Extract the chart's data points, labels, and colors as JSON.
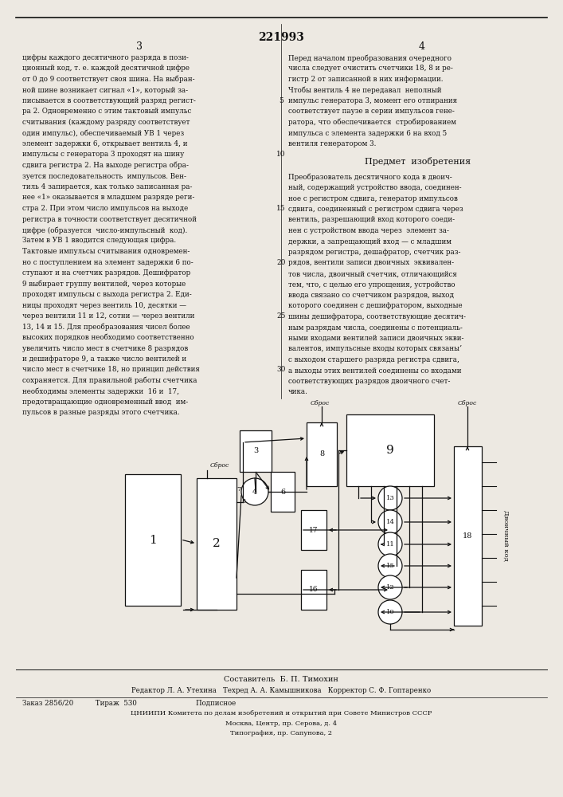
{
  "patent_number": "221993",
  "bg_color": "#f2f0eb",
  "left_col_text": [
    "цифры каждого десятичного разряда в пози-",
    "ционный код, т. е. каждой десятичной цифре",
    "от 0 до 9 соответствует своя шина. На выбран-",
    "ной шине возникает сигнал «1», который за-",
    "писывается в соответствующий разряд регист-",
    "ра 2. Одновременно с этим тактовый импульс",
    "считывания (каждому разряду соответствует",
    "один импульс), обеспечиваемый УВ 1 через",
    "элемент задержки 6, открывает вентиль 4, и",
    "импульсы с генератора 3 проходят на шину",
    "сдвига регистра 2. На выходе регистра обра-",
    "зуется последовательность  импульсов. Вен-",
    "тиль 4 запирается, как только записанная ра-",
    "нее «1» оказывается в младшем разряде реги-",
    "стра 2. При этом число импульсов на выходе",
    "регистра в точности соответствует десятичной",
    "цифре (образуется  число-импульсный  код).",
    "Затем в УВ 1 вводится следующая цифра.",
    "Тактовые импульсы считывания одновремен-",
    "но с поступлением на элемент задержки 6 по-",
    "ступают и на счетчик разрядов. Дешифратор",
    "9 выбирает группу вентилей, через которые",
    "проходят импульсы с выхода регистра 2. Еди-",
    "ницы проходят через вентиль 10, десятки —",
    "через вентили 11 и 12, сотни — через вентили",
    "13, 14 и 15. Для преобразования чисел более",
    "высоких порядков необходимо соответственно",
    "увеличить число мест в счетчике 8 разрядов",
    "и дешифраторе 9, а также число вентилей и",
    "число мест в счетчике 18, но принцип действия",
    "сохраняется. Для правильной работы счетчика",
    "необходимы элементы задержки  16 и  17,",
    "предотвращающие одновременный ввод  им-",
    "пульсов в разные разряды этого счетчика."
  ],
  "right_col_text_top": [
    "Перед началом преобразования очередного",
    "числа следует очистить счетчики 18, 8 и ре-",
    "гистр 2 от записанной в них информации.",
    "Чтобы вентиль 4 не передавал  неполный",
    "импульс генератора 3, момент его отпирания",
    "соответствует паузе в серии импульсов гене-",
    "ратора, что обеспечивается  стробированием",
    "импульса с элемента задержки 6 на вход 5",
    "вентиля генератором 3."
  ],
  "predmet_title": "Предмет  изобретения",
  "predmet_text": [
    "Преобразователь десятичного кода в двоич-",
    "ный, содержащий устройство ввода, соединен-",
    "ное с регистром сдвига, генератор импульсов",
    "сдвига, соединенный с регистром сдвига через",
    "вентиль, разрешающий вход которого соеди-",
    "нен с устройством ввода через  элемент за-",
    "держки, а запрещающий вход — с младшим",
    "разрядом регистра, дешафратор, счетчик раз-",
    "рядов, вентили записи двоичных  эквивален-",
    "тов числа, двоичный счетчик, отличающийся",
    "тем, что, с целью его упрощения, устройство",
    "ввода связано со счетчиком разрядов, выход",
    "которого соединен с дешифратором, выходные",
    "шины дешифратора, соответствующие десятич-",
    "ным разрядам числа, соединены с потенциаль-",
    "ными входами вентилей записи двоичных экви-",
    "валентов, импульсные входы которых связаныʼ",
    "с выходом старшего разряда регистра сдвига,",
    "а выходы этих вентилей соединены со входами",
    "соответствующих разрядов двоичного счет-",
    "чика."
  ],
  "line_numbers": [
    "5",
    "10",
    "15",
    "20",
    "25",
    "30"
  ],
  "footer_lines": [
    "Составитель  Б. П. Тимохин",
    "Редактор Л. А. Утехина   Техред А. А. Камышникова   Корректор С. Ф. Гоптаренко",
    "Заказ 2856/20          Тираж  530                           Подписное",
    "ЦНИИПИ Комитета по делам изобретений и открытий при Совете Министров СССР",
    "Москва, Центр, пр. Серова, д. 4",
    "Типография, пр. Сапунова, 2"
  ]
}
